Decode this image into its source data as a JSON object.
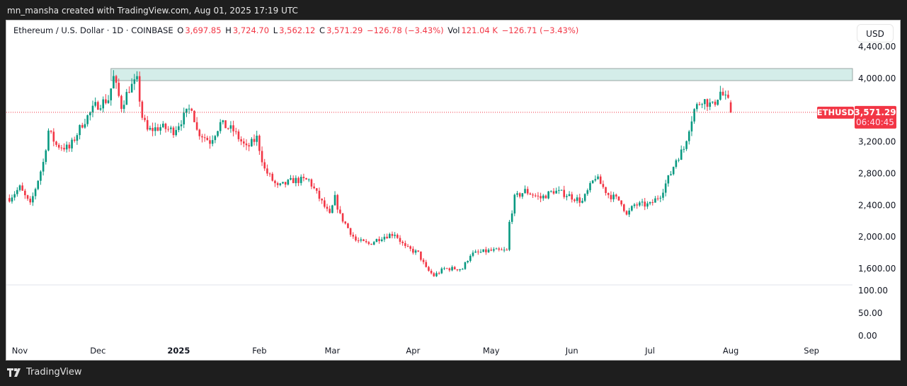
{
  "header": {
    "caption": "mn_mansha created with TradingView.com, Aug 01, 2025 17:19 UTC"
  },
  "legend": {
    "symbol": "Ethereum / U.S. Dollar · 1D · COINBASE",
    "o_label": "O",
    "o": "3,697.85",
    "h_label": "H",
    "h": "3,724.70",
    "l_label": "L",
    "l": "3,562.12",
    "c_label": "C",
    "c": "3,571.29",
    "change": "−126.78 (−3.43%)",
    "vol_label": "Vol",
    "vol": "121.04 K",
    "vol_change": "−126.71 (−3.43%)"
  },
  "currency_button": "USD",
  "price_tag": {
    "symbol": "ETHUSD",
    "price": "3,571.29",
    "countdown": "06:40:45"
  },
  "footer": {
    "brand": "TradingView"
  },
  "colors": {
    "up": "#089981",
    "down": "#f23645",
    "zone": "#d4ede9",
    "zone_border": "#9aa7a5"
  },
  "chart_data": {
    "type": "candlestick",
    "title": "Ethereum / U.S. Dollar · 1D · COINBASE",
    "ylim": [
      1480,
      4500
    ],
    "y_ticks": [
      "4,400.00",
      "4,000.00",
      "3,200.00",
      "2,800.00",
      "2,400.00",
      "2,000.00",
      "1,600.00"
    ],
    "y_tick_values": [
      4400,
      4000,
      3200,
      2800,
      2400,
      2000,
      1600
    ],
    "volume_ticks": [
      "100.00",
      "50.00",
      "0.00"
    ],
    "x_ticks": [
      "Nov",
      "Dec",
      "2025",
      "Feb",
      "Mar",
      "Apr",
      "May",
      "Jun",
      "Jul",
      "Aug",
      "Sep"
    ],
    "x_tick_dates": [
      "2024-11-01",
      "2024-12-01",
      "2025-01-01",
      "2025-02-01",
      "2025-03-01",
      "2025-04-01",
      "2025-05-01",
      "2025-06-01",
      "2025-07-01",
      "2025-08-01",
      "2025-09-01"
    ],
    "resistance_zone": {
      "low": 3972,
      "high": 4124,
      "from": "2024-12-06"
    },
    "last_price": 3571.29,
    "approx_closes": [
      [
        "2024-10-28",
        2490
      ],
      [
        "2024-11-01",
        2620
      ],
      [
        "2024-11-05",
        2400
      ],
      [
        "2024-11-10",
        2940
      ],
      [
        "2024-11-12",
        3340
      ],
      [
        "2024-11-15",
        3160
      ],
      [
        "2024-11-20",
        3115
      ],
      [
        "2024-11-25",
        3430
      ],
      [
        "2024-11-30",
        3650
      ],
      [
        "2024-12-05",
        3740
      ],
      [
        "2024-12-07",
        4010
      ],
      [
        "2024-12-10",
        3650
      ],
      [
        "2024-12-13",
        3875
      ],
      [
        "2024-12-16",
        3965
      ],
      [
        "2024-12-18",
        3515
      ],
      [
        "2024-12-20",
        3340
      ],
      [
        "2024-12-25",
        3385
      ],
      [
        "2024-12-30",
        3340
      ],
      [
        "2025-01-03",
        3515
      ],
      [
        "2025-01-06",
        3650
      ],
      [
        "2025-01-08",
        3340
      ],
      [
        "2025-01-13",
        3205
      ],
      [
        "2025-01-17",
        3430
      ],
      [
        "2025-01-22",
        3340
      ],
      [
        "2025-01-27",
        3115
      ],
      [
        "2025-01-31",
        3250
      ],
      [
        "2025-02-03",
        2850
      ],
      [
        "2025-02-08",
        2625
      ],
      [
        "2025-02-14",
        2715
      ],
      [
        "2025-02-20",
        2715
      ],
      [
        "2025-02-24",
        2490
      ],
      [
        "2025-02-28",
        2270
      ],
      [
        "2025-03-02",
        2490
      ],
      [
        "2025-03-04",
        2270
      ],
      [
        "2025-03-10",
        1955
      ],
      [
        "2025-03-15",
        1910
      ],
      [
        "2025-03-20",
        2000
      ],
      [
        "2025-03-25",
        2045
      ],
      [
        "2025-03-29",
        1865
      ],
      [
        "2025-04-03",
        1795
      ],
      [
        "2025-04-06",
        1600
      ],
      [
        "2025-04-09",
        1510
      ],
      [
        "2025-04-13",
        1600
      ],
      [
        "2025-04-20",
        1600
      ],
      [
        "2025-04-23",
        1780
      ],
      [
        "2025-04-30",
        1825
      ],
      [
        "2025-05-07",
        1825
      ],
      [
        "2025-05-08",
        2180
      ],
      [
        "2025-05-10",
        2490
      ],
      [
        "2025-05-14",
        2580
      ],
      [
        "2025-05-20",
        2490
      ],
      [
        "2025-05-25",
        2580
      ],
      [
        "2025-05-30",
        2535
      ],
      [
        "2025-06-05",
        2445
      ],
      [
        "2025-06-10",
        2760
      ],
      [
        "2025-06-15",
        2535
      ],
      [
        "2025-06-20",
        2445
      ],
      [
        "2025-06-22",
        2270
      ],
      [
        "2025-06-25",
        2405
      ],
      [
        "2025-07-01",
        2405
      ],
      [
        "2025-07-05",
        2535
      ],
      [
        "2025-07-09",
        2805
      ],
      [
        "2025-07-11",
        2980
      ],
      [
        "2025-07-14",
        3115
      ],
      [
        "2025-07-16",
        3385
      ],
      [
        "2025-07-18",
        3605
      ],
      [
        "2025-07-21",
        3740
      ],
      [
        "2025-07-25",
        3650
      ],
      [
        "2025-07-28",
        3830
      ],
      [
        "2025-07-30",
        3740
      ],
      [
        "2025-07-31",
        3698
      ],
      [
        "2025-08-01",
        3571
      ]
    ]
  }
}
